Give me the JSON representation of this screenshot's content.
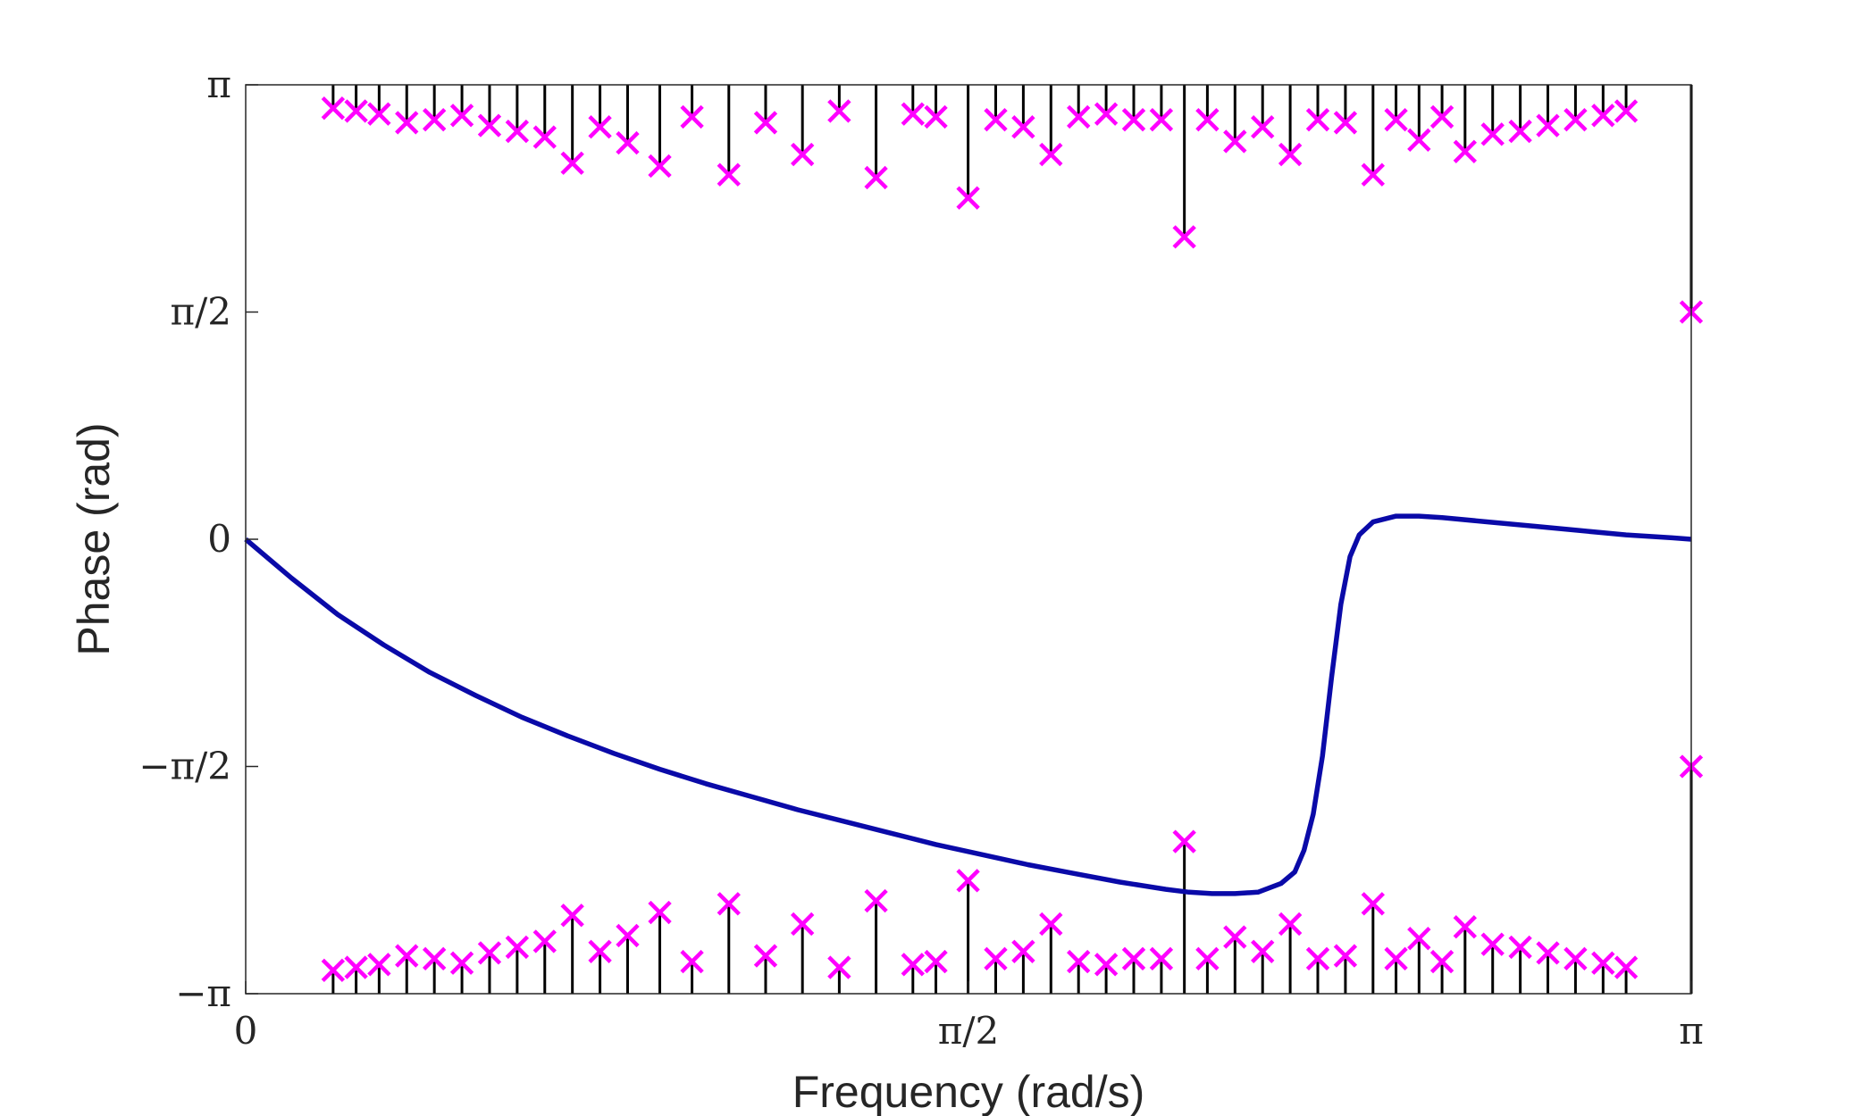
{
  "chart_data": {
    "type": "line",
    "title": "",
    "xlabel": "Frequency (rad/s)",
    "ylabel": "Phase (rad)",
    "xlim": [
      0,
      3.14159
    ],
    "ylim": [
      -3.14159,
      3.14159
    ],
    "grid": false,
    "x_ticks": [
      {
        "value": 0,
        "label": "0"
      },
      {
        "value": 1.5708,
        "label": "π/2"
      },
      {
        "value": 3.14159,
        "label": "π"
      }
    ],
    "y_ticks": [
      {
        "value": -3.14159,
        "label": "−π"
      },
      {
        "value": -1.5708,
        "label": "−π/2"
      },
      {
        "value": 0,
        "label": "0"
      },
      {
        "value": 1.5708,
        "label": "π/2"
      },
      {
        "value": 3.14159,
        "label": "π"
      }
    ],
    "colors": {
      "line": "#0a0aa8",
      "marker": "#ff00ff",
      "stem": "#000000",
      "axis": "#262626"
    },
    "series": [
      {
        "type": "line",
        "x": [
          0,
          0.1,
          0.2,
          0.3,
          0.4,
          0.5,
          0.6,
          0.7,
          0.8,
          0.9,
          1.0,
          1.1,
          1.2,
          1.3,
          1.4,
          1.5,
          1.6,
          1.7,
          1.8,
          1.9,
          2.0,
          2.05,
          2.1,
          2.15,
          2.2,
          2.25,
          2.28,
          2.3,
          2.32,
          2.34,
          2.36,
          2.38,
          2.4,
          2.42,
          2.45,
          2.5,
          2.55,
          2.6,
          2.7,
          2.8,
          2.9,
          3.0,
          3.1,
          3.14159
        ],
        "y": [
          0,
          -0.27,
          -0.52,
          -0.73,
          -0.92,
          -1.08,
          -1.23,
          -1.36,
          -1.48,
          -1.59,
          -1.69,
          -1.78,
          -1.87,
          -1.95,
          -2.03,
          -2.11,
          -2.18,
          -2.25,
          -2.31,
          -2.37,
          -2.42,
          -2.44,
          -2.45,
          -2.45,
          -2.44,
          -2.38,
          -2.3,
          -2.15,
          -1.9,
          -1.5,
          -0.95,
          -0.45,
          -0.12,
          0.03,
          0.12,
          0.16,
          0.16,
          0.15,
          0.12,
          0.09,
          0.06,
          0.03,
          0.01,
          0
        ]
      },
      {
        "type": "stem",
        "x": [
          0.19,
          0.24,
          0.29,
          0.35,
          0.41,
          0.47,
          0.53,
          0.59,
          0.65,
          0.71,
          0.77,
          0.83,
          0.9,
          0.97,
          1.05,
          1.13,
          1.21,
          1.29,
          1.37,
          1.45,
          1.5,
          1.57,
          1.63,
          1.69,
          1.75,
          1.81,
          1.87,
          1.93,
          1.99,
          2.04,
          2.09,
          2.15,
          2.21,
          2.27,
          2.33,
          2.39,
          2.45,
          2.5,
          2.55,
          2.6,
          2.65,
          2.71,
          2.77,
          2.83,
          2.89,
          2.95,
          3.0,
          3.14159
        ],
        "y": [
          2.98,
          2.96,
          2.94,
          2.88,
          2.9,
          2.93,
          2.86,
          2.82,
          2.78,
          2.6,
          2.85,
          2.74,
          2.58,
          2.92,
          2.52,
          2.88,
          2.66,
          2.96,
          2.5,
          2.94,
          2.92,
          2.36,
          2.9,
          2.85,
          2.66,
          2.92,
          2.94,
          2.9,
          2.9,
          2.09,
          2.9,
          2.75,
          2.85,
          2.66,
          2.9,
          2.88,
          2.52,
          2.9,
          2.76,
          2.92,
          2.68,
          2.8,
          2.82,
          2.86,
          2.9,
          2.93,
          2.96,
          1.5708
        ],
        "bottom_y": [
          -2.98,
          -2.96,
          -2.94,
          -2.88,
          -2.9,
          -2.93,
          -2.86,
          -2.82,
          -2.78,
          -2.6,
          -2.85,
          -2.74,
          -2.58,
          -2.92,
          -2.52,
          -2.88,
          -2.66,
          -2.96,
          -2.5,
          -2.94,
          -2.92,
          -2.36,
          -2.9,
          -2.85,
          -2.66,
          -2.92,
          -2.94,
          -2.9,
          -2.9,
          -2.09,
          -2.9,
          -2.75,
          -2.85,
          -2.66,
          -2.9,
          -2.88,
          -2.52,
          -2.9,
          -2.76,
          -2.92,
          -2.68,
          -2.8,
          -2.82,
          -2.86,
          -2.9,
          -2.93,
          -2.96,
          -1.5708
        ]
      }
    ]
  }
}
